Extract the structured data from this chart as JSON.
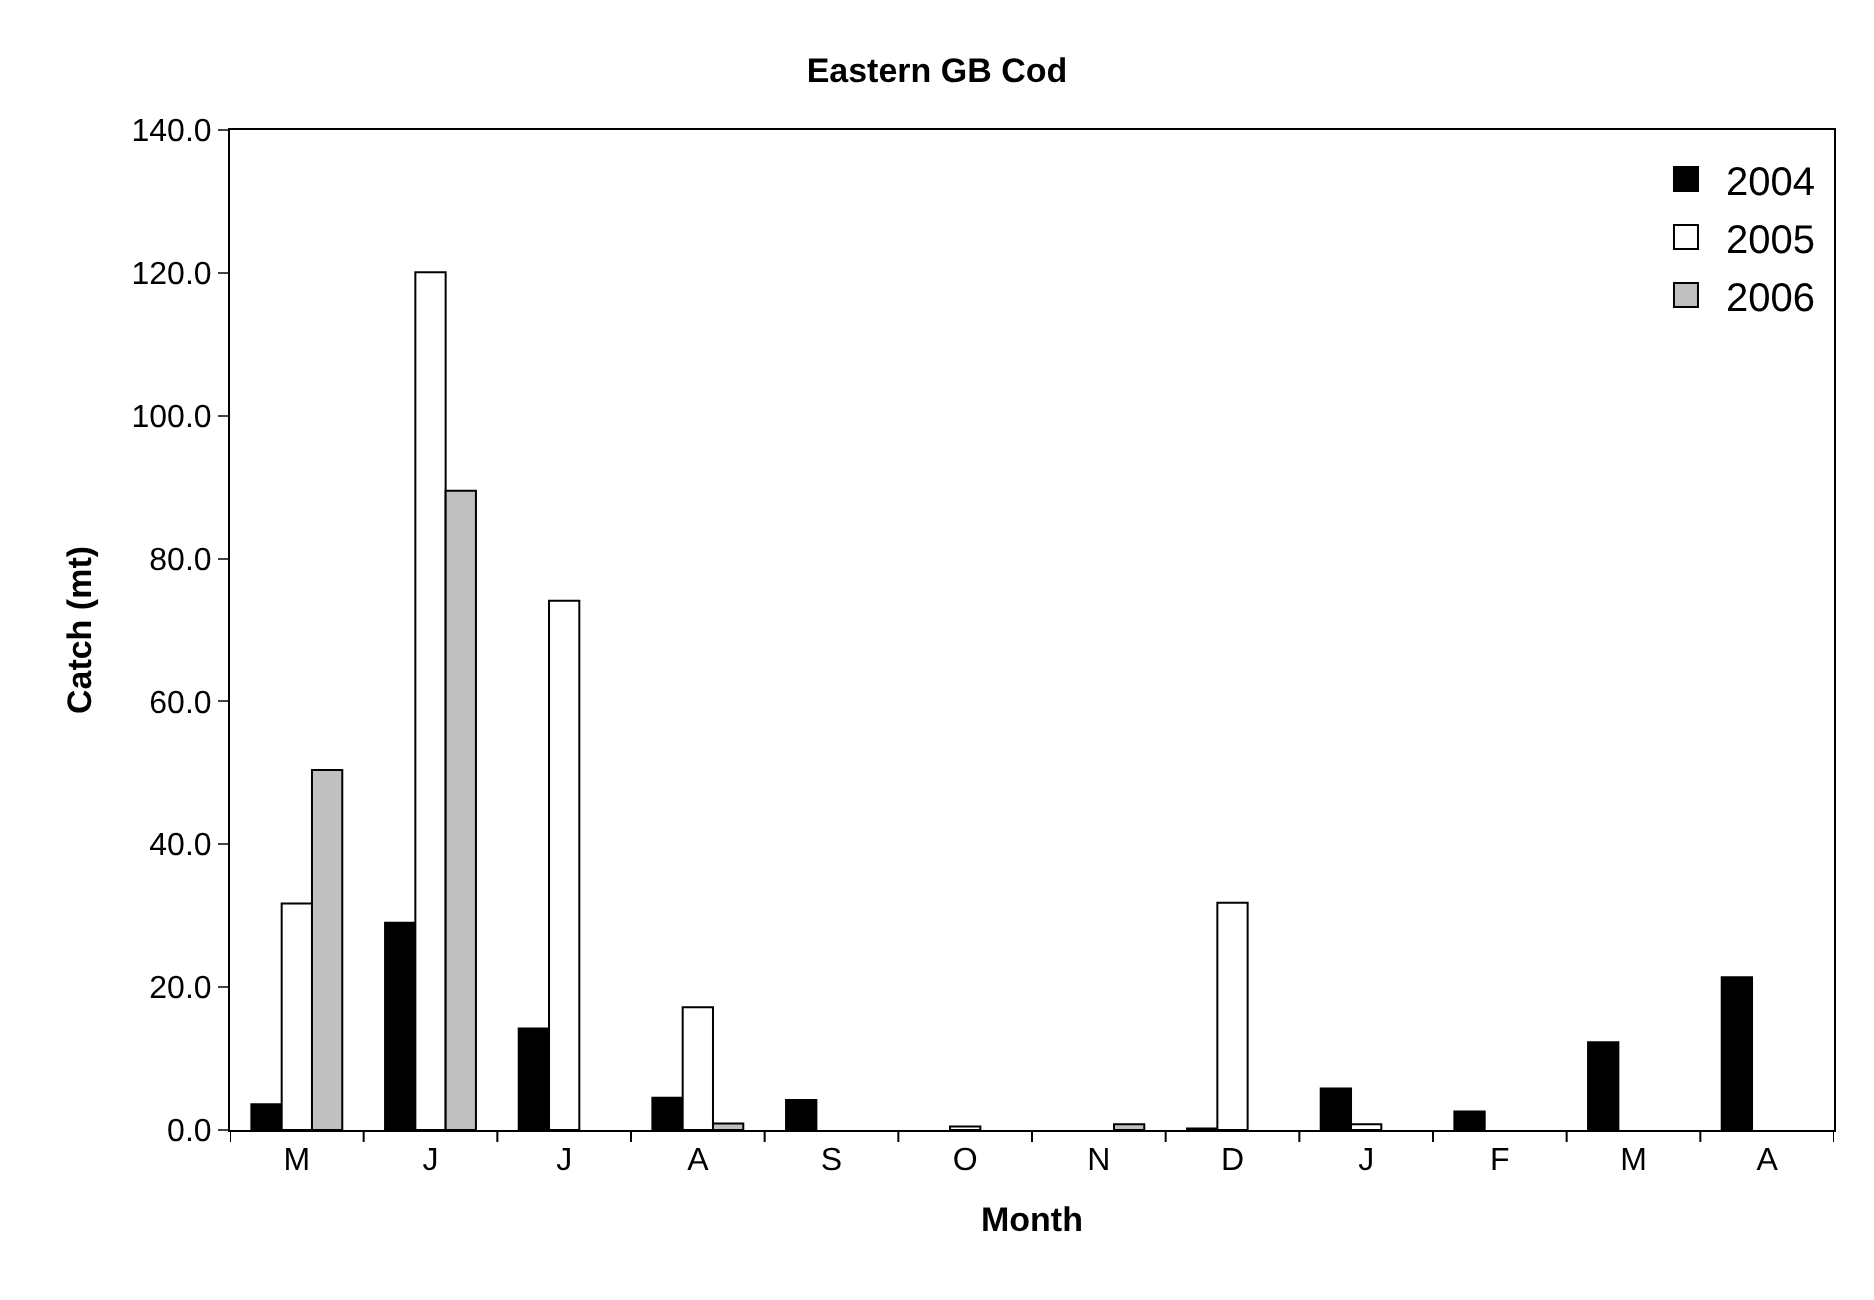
{
  "chart_data": {
    "type": "bar",
    "title": "Eastern GB Cod",
    "xlabel": "Month",
    "ylabel": "Catch (mt)",
    "categories": [
      "M",
      "J",
      "J",
      "A",
      "S",
      "O",
      "N",
      "D",
      "J",
      "F",
      "M",
      "A"
    ],
    "series": [
      {
        "name": "2004",
        "color": "#000000",
        "values": [
          3.6,
          29.0,
          14.2,
          4.5,
          4.2,
          null,
          null,
          0.2,
          5.8,
          2.6,
          12.3,
          21.4
        ]
      },
      {
        "name": "2005",
        "color": "#ffffff",
        "values": [
          31.7,
          120.1,
          74.1,
          17.2,
          null,
          0.5,
          null,
          31.8,
          0.8,
          null,
          null,
          null
        ]
      },
      {
        "name": "2006",
        "color": "#c0c0c0",
        "values": [
          50.4,
          89.5,
          null,
          0.9,
          null,
          null,
          0.8,
          null,
          null,
          null,
          null,
          null
        ]
      }
    ],
    "ylim": [
      0,
      140
    ],
    "yticks": [
      {
        "value": 0,
        "label": "0.0"
      },
      {
        "value": 20,
        "label": "20.0"
      },
      {
        "value": 40,
        "label": "40.0"
      },
      {
        "value": 60,
        "label": "60.0"
      },
      {
        "value": 80,
        "label": "80.0"
      },
      {
        "value": 100,
        "label": "100.0"
      },
      {
        "value": 120,
        "label": "120.0"
      },
      {
        "value": 140,
        "label": "140.0"
      }
    ],
    "legend": "top right"
  }
}
